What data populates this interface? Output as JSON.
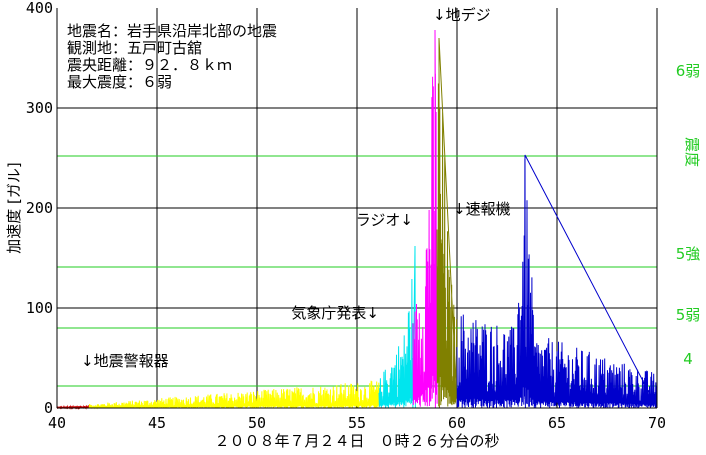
{
  "chart_data": {
    "type": "line",
    "xlabel": "２００８年７月２４日　０時２６分台の秒",
    "ylabel": "加速度 [ガル]",
    "right_axis_label": "震度",
    "xlim": [
      40,
      70
    ],
    "ylim": [
      0,
      400
    ],
    "x_ticks": [
      "40",
      "45",
      "50",
      "55",
      "60",
      "65",
      "70"
    ],
    "y_ticks": [
      "0",
      "100",
      "200",
      "300",
      "400"
    ],
    "grid": true,
    "info_lines": [
      "地震名：岩手県沿岸北部の地震",
      "観測地：五戸町古舘",
      "震央距離：９２．８ｋｍ",
      "最大震度：６弱"
    ],
    "intensity_levels": [
      {
        "label": "6弱",
        "gal": 252
      },
      {
        "label": "5強",
        "gal": 141
      },
      {
        "label": "5弱",
        "gal": 80
      },
      {
        "label": "4",
        "gal": 22
      }
    ],
    "annotations": [
      {
        "text": "↓地震警報器",
        "x": 41.2,
        "y": 42
      },
      {
        "text": "気象庁発表↓",
        "x": 56.1,
        "y": 90
      },
      {
        "text": "ラジオ↓",
        "x": 57.8,
        "y": 183
      },
      {
        "text": "↓速報機",
        "x": 59.8,
        "y": 194
      },
      {
        "text": "↓地デジ",
        "x": 58.8,
        "y": 388
      }
    ],
    "series": [
      {
        "color": "#cc0000",
        "x_start": 40.0,
        "x_end": 41.6,
        "amp_start": 1,
        "amp_end": 3
      },
      {
        "color": "#ffff00",
        "x_start": 41.6,
        "x_end": 56.1,
        "amp_start": 4,
        "amp_end": 28
      },
      {
        "color": "#00e5ee",
        "x_start": 56.1,
        "x_end": 57.8,
        "amp_start": 28,
        "amp_end": 95,
        "peak": {
          "x": 57.9,
          "y": 162
        }
      },
      {
        "color": "#ff00ff",
        "x_start": 57.8,
        "x_end": 59.0,
        "amp_start": 90,
        "amp_end": 250,
        "peak": {
          "x": 58.9,
          "y": 378
        }
      },
      {
        "color": "#808000",
        "x_start": 59.0,
        "x_end": 60.0,
        "amp_start": 230,
        "amp_end": 90,
        "peak": {
          "x": 59.1,
          "y": 370
        }
      },
      {
        "color": "#0000cc",
        "x_start": 60.0,
        "x_end": 70.0,
        "amp_start": 100,
        "amp_end": 35,
        "peak": {
          "x": 63.4,
          "y": 253
        }
      }
    ]
  }
}
